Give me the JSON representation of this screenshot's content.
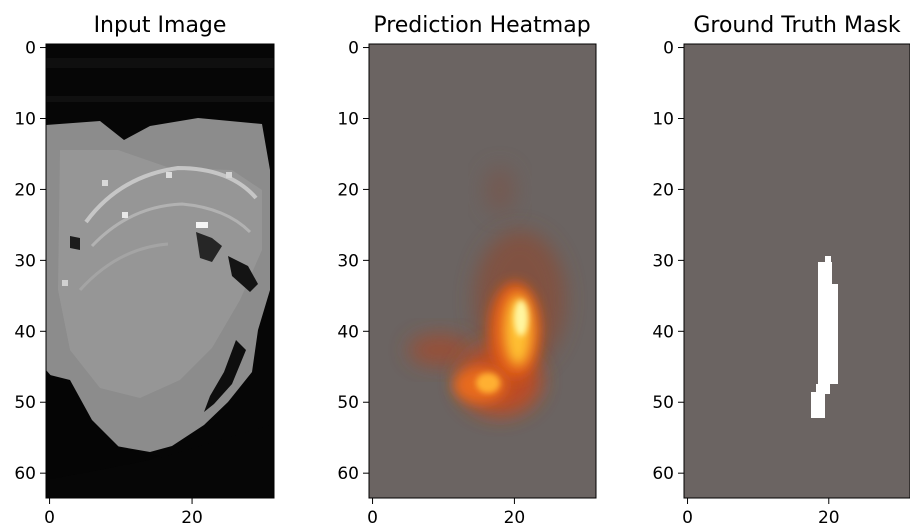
{
  "chart_data": [
    {
      "type": "heatmap",
      "title": "Input Image",
      "xticks": [
        0,
        20
      ],
      "yticks": [
        0,
        10,
        20,
        30,
        40,
        50,
        60
      ],
      "xlim": [
        0,
        31
      ],
      "ylim": [
        63,
        0
      ],
      "colormap": "gray",
      "colors": {
        "background": "#060606",
        "tissue": "#8f8f8f",
        "highlight": "#f2f2f2",
        "dark_cleft": "#141414"
      }
    },
    {
      "type": "heatmap",
      "title": "Prediction Heatmap",
      "xticks": [
        0,
        20
      ],
      "yticks": [
        0,
        10,
        20,
        30,
        40,
        50,
        60
      ],
      "xlim": [
        0,
        31
      ],
      "ylim": [
        63,
        0
      ],
      "colormap": "hot",
      "colors": {
        "background": "#6b6462",
        "dim": "#7a4f42",
        "mid": "#c8481c",
        "bright": "#ffc030",
        "peak": "#fff6a0"
      }
    },
    {
      "type": "heatmap",
      "title": "Ground Truth Mask",
      "xticks": [
        0,
        20
      ],
      "yticks": [
        0,
        10,
        20,
        30,
        40,
        50,
        60
      ],
      "xlim": [
        0,
        31
      ],
      "ylim": [
        63,
        0
      ],
      "colormap": "binary",
      "colors": {
        "background": "#6b6462",
        "mask": "#ffffff"
      }
    }
  ]
}
